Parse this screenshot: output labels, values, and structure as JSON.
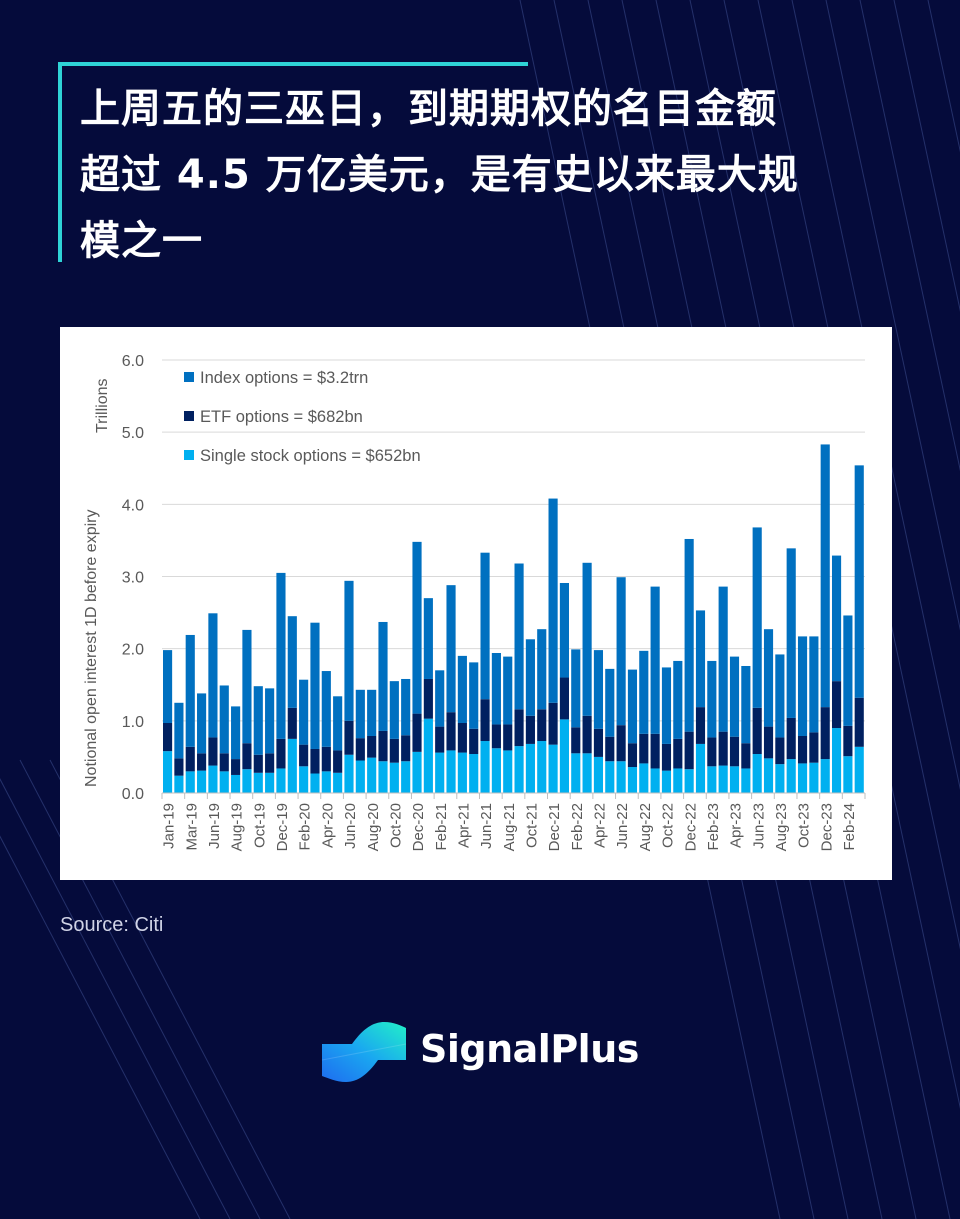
{
  "title_lines": [
    "上周五的三巫日，到期期权的名目金额",
    "超过 4.5 万亿美元，是有史以来最大规",
    "模之一"
  ],
  "source": "Source: Citi",
  "brand": {
    "name": "SignalPlus",
    "logo_icon": "signalplus-wave-logo"
  },
  "colors": {
    "background": "#050b3b",
    "accent": "#2fd3d6",
    "index": "#0070c0",
    "etf": "#002060",
    "single": "#00b0f0"
  },
  "chart_data": {
    "type": "bar",
    "stacked": true,
    "title": "",
    "ylabel": "Notional open interest 1D before expiry",
    "yunit": "Trillions",
    "ylim": [
      0,
      6
    ],
    "yticks": [
      "0.0",
      "1.0",
      "2.0",
      "3.0",
      "4.0",
      "5.0",
      "6.0"
    ],
    "grid": true,
    "legend_placement": "top-left",
    "categories": [
      "Jan-19",
      "",
      "Mar-19",
      "",
      "Jun-19",
      "",
      "Aug-19",
      "",
      "Oct-19",
      "",
      "Dec-19",
      "",
      "Feb-20",
      "",
      "Apr-20",
      "",
      "Jun-20",
      "",
      "Aug-20",
      "",
      "Oct-20",
      "",
      "Dec-20",
      "",
      "Feb-21",
      "",
      "Apr-21",
      "",
      "Jun-21",
      "",
      "Aug-21",
      "",
      "Oct-21",
      "",
      "Dec-21",
      "",
      "Feb-22",
      "",
      "Apr-22",
      "",
      "Jun-22",
      "",
      "Aug-22",
      "",
      "Oct-22",
      "",
      "Dec-22",
      "",
      "Feb-23",
      "",
      "Apr-23",
      "",
      "Jun-23",
      "",
      "Aug-23",
      "",
      "Oct-23",
      "",
      "Dec-23",
      "",
      "Feb-24",
      ""
    ],
    "series": [
      {
        "name": "Single stock options = $652bn",
        "color": "#00b0f0",
        "values": [
          0.58,
          0.24,
          0.3,
          0.31,
          0.38,
          0.3,
          0.25,
          0.33,
          0.28,
          0.28,
          0.34,
          0.75,
          0.37,
          0.27,
          0.3,
          0.28,
          0.53,
          0.45,
          0.49,
          0.44,
          0.42,
          0.44,
          0.57,
          1.03,
          0.56,
          0.59,
          0.56,
          0.54,
          0.72,
          0.62,
          0.59,
          0.65,
          0.68,
          0.72,
          0.67,
          1.02,
          0.55,
          0.55,
          0.5,
          0.44,
          0.44,
          0.36,
          0.41,
          0.34,
          0.31,
          0.34,
          0.33,
          0.68,
          0.37,
          0.38,
          0.37,
          0.34,
          0.54,
          0.48,
          0.4,
          0.47,
          0.41,
          0.42,
          0.47,
          0.9,
          0.51,
          0.64
        ]
      },
      {
        "name": "ETF options = $682bn",
        "color": "#002060",
        "values": [
          0.39,
          0.24,
          0.34,
          0.24,
          0.39,
          0.25,
          0.22,
          0.36,
          0.25,
          0.27,
          0.41,
          0.43,
          0.3,
          0.34,
          0.34,
          0.31,
          0.47,
          0.31,
          0.3,
          0.42,
          0.33,
          0.36,
          0.53,
          0.55,
          0.36,
          0.53,
          0.41,
          0.35,
          0.58,
          0.33,
          0.36,
          0.51,
          0.39,
          0.44,
          0.58,
          0.58,
          0.36,
          0.52,
          0.39,
          0.34,
          0.5,
          0.33,
          0.41,
          0.48,
          0.37,
          0.41,
          0.52,
          0.51,
          0.4,
          0.47,
          0.41,
          0.35,
          0.64,
          0.44,
          0.37,
          0.57,
          0.38,
          0.42,
          0.72,
          0.65,
          0.42,
          0.68
        ]
      },
      {
        "name": "Index options = $3.2trn",
        "color": "#0070c0",
        "values": [
          1.01,
          0.77,
          1.55,
          0.83,
          1.72,
          0.94,
          0.73,
          1.57,
          0.95,
          0.9,
          2.3,
          1.27,
          0.9,
          1.75,
          1.05,
          0.75,
          1.94,
          0.67,
          0.64,
          1.51,
          0.8,
          0.78,
          2.38,
          1.12,
          0.78,
          1.76,
          0.93,
          0.92,
          2.03,
          0.99,
          0.94,
          2.02,
          1.06,
          1.11,
          2.83,
          1.31,
          1.08,
          2.12,
          1.09,
          0.94,
          2.05,
          1.02,
          1.15,
          2.04,
          1.06,
          1.08,
          2.67,
          1.34,
          1.06,
          2.01,
          1.11,
          1.07,
          2.5,
          1.35,
          1.15,
          2.35,
          1.38,
          1.33,
          3.64,
          1.74,
          1.53,
          3.22
        ]
      }
    ]
  }
}
